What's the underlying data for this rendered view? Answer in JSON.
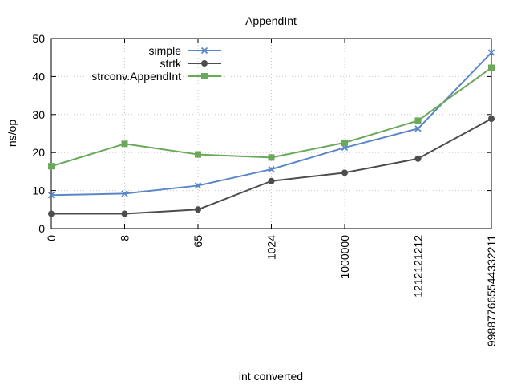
{
  "chart_data": {
    "type": "line",
    "title": "AppendInt",
    "xlabel": "int converted",
    "ylabel": "ns/op",
    "categories": [
      "0",
      "8",
      "65",
      "1024",
      "1000000",
      "1212121212",
      "998877665544332211"
    ],
    "ylim": [
      0,
      50
    ],
    "yticks": [
      0,
      10,
      20,
      30,
      40,
      50
    ],
    "grid": true,
    "legend_position": "top-left",
    "series": [
      {
        "name": "simple",
        "color": "#5b87c8",
        "marker": "cross",
        "values": [
          8.8,
          9.2,
          11.3,
          15.6,
          21.3,
          26.3,
          46.3
        ]
      },
      {
        "name": "strtk",
        "color": "#4d4d4d",
        "marker": "circle",
        "values": [
          3.9,
          3.9,
          5.0,
          12.5,
          14.7,
          18.4,
          28.9
        ]
      },
      {
        "name": "strconv.AppendInt",
        "color": "#6aa85a",
        "marker": "square",
        "values": [
          16.4,
          22.3,
          19.5,
          18.7,
          22.6,
          28.4,
          42.3
        ]
      }
    ]
  }
}
